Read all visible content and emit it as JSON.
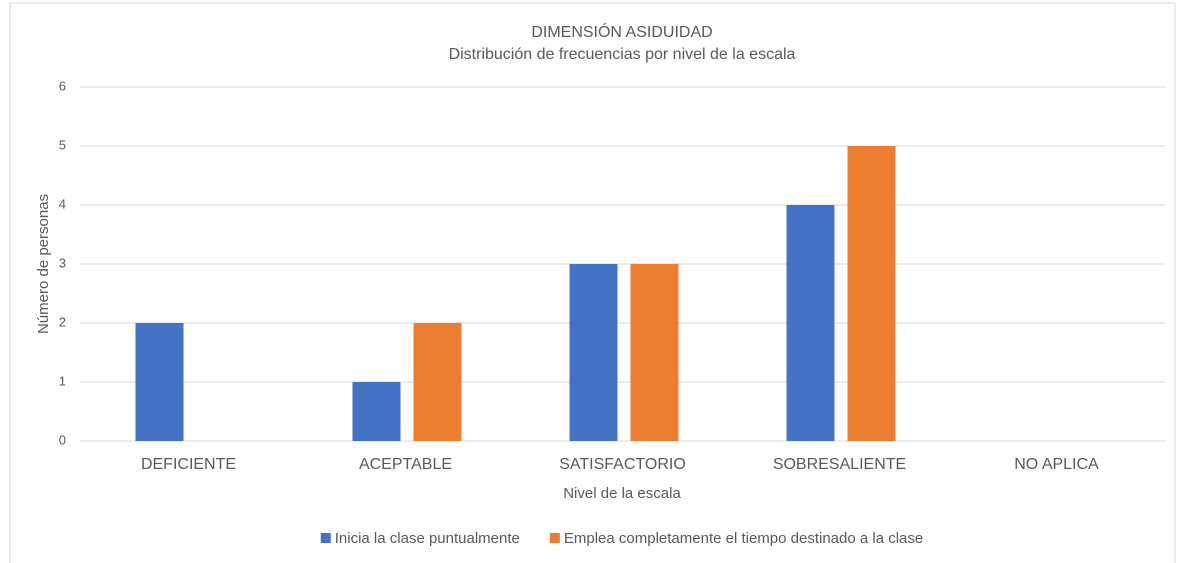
{
  "chart_data": {
    "type": "bar",
    "title": "DIMENSIÓN ASIDUIDAD",
    "subtitle": "Distribución de frecuencias por nivel de la escala",
    "x_label": "Nivel de la escala",
    "y_label": "Número de personas",
    "categories": [
      "DEFICIENTE",
      "ACEPTABLE",
      "SATISFACTORIO",
      "SOBRESALIENTE",
      "NO APLICA"
    ],
    "series": [
      {
        "name": "Inicia la clase puntualmente",
        "color": "#4472c4",
        "values": [
          2,
          1,
          3,
          4,
          0
        ]
      },
      {
        "name": "Emplea completamente el tiempo destinado a la clase",
        "color": "#ed7d31",
        "values": [
          0,
          2,
          3,
          5,
          0
        ]
      }
    ],
    "ylim": [
      0,
      6
    ],
    "yticks": [
      0,
      1,
      2,
      3,
      4,
      5,
      6
    ],
    "grid": true,
    "legend": "bottom"
  }
}
